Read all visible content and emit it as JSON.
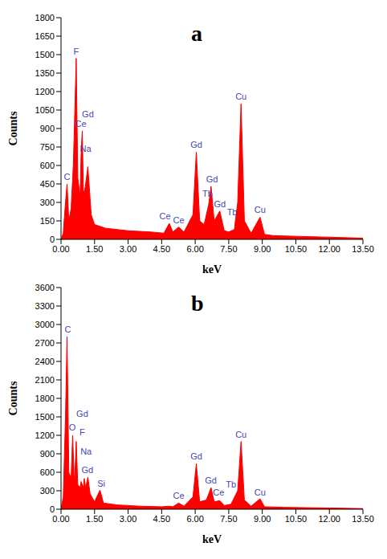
{
  "chart_data": [
    {
      "type": "area",
      "title": "a",
      "x_label": "keV",
      "y_label": "Counts",
      "color": "#ff0000",
      "x": [
        0.0,
        0.1,
        0.2,
        0.27,
        0.35,
        0.45,
        0.55,
        0.68,
        0.75,
        0.85,
        0.9,
        0.95,
        1.0,
        1.04,
        1.1,
        1.2,
        1.35,
        1.5,
        2.0,
        3.0,
        4.0,
        4.6,
        4.84,
        5.0,
        5.26,
        5.5,
        5.9,
        6.05,
        6.2,
        6.4,
        6.6,
        6.71,
        6.85,
        7.1,
        7.3,
        7.5,
        7.75,
        7.9,
        8.05,
        8.2,
        8.5,
        8.9,
        9.1,
        9.5,
        10.5,
        11.5,
        12.5,
        13.5
      ],
      "values": [
        0,
        50,
        300,
        450,
        150,
        250,
        600,
        1470,
        500,
        350,
        700,
        880,
        400,
        380,
        450,
        590,
        200,
        120,
        90,
        70,
        60,
        50,
        130,
        60,
        100,
        60,
        200,
        710,
        150,
        120,
        280,
        430,
        150,
        230,
        70,
        60,
        80,
        300,
        1100,
        150,
        50,
        180,
        40,
        30,
        25,
        20,
        15,
        10
      ],
      "xlim": [
        0,
        13.5
      ],
      "xticks": [
        {
          "value": 0,
          "label": "0.00"
        },
        {
          "value": 1.5,
          "label": "1.50"
        },
        {
          "value": 3,
          "label": "3.00"
        },
        {
          "value": 4.5,
          "label": "4.50"
        },
        {
          "value": 6,
          "label": "6.00"
        },
        {
          "value": 7.5,
          "label": "7.50"
        },
        {
          "value": 9,
          "label": "9.00"
        },
        {
          "value": 10.5,
          "label": "10.50"
        },
        {
          "value": 12,
          "label": "12.00"
        },
        {
          "value": 13.5,
          "label": "13.50"
        }
      ],
      "ylim": [
        0,
        1800
      ],
      "yticks": [
        0,
        150,
        300,
        450,
        600,
        750,
        900,
        1050,
        1200,
        1350,
        1500,
        1650,
        1800
      ],
      "annotations": [
        {
          "text": "C",
          "x": 0.27,
          "y": 470
        },
        {
          "text": "F",
          "x": 0.68,
          "y": 1490
        },
        {
          "text": "Ce",
          "x": 0.88,
          "y": 900
        },
        {
          "text": "Na",
          "x": 1.1,
          "y": 700
        },
        {
          "text": "Gd",
          "x": 1.2,
          "y": 980
        },
        {
          "text": "Ce",
          "x": 4.65,
          "y": 150
        },
        {
          "text": "Ce",
          "x": 5.26,
          "y": 120
        },
        {
          "text": "Gd",
          "x": 6.05,
          "y": 730
        },
        {
          "text": "Gd",
          "x": 6.75,
          "y": 450
        },
        {
          "text": "Tb",
          "x": 6.55,
          "y": 330
        },
        {
          "text": "Gd",
          "x": 7.1,
          "y": 250
        },
        {
          "text": "Tb",
          "x": 7.65,
          "y": 180
        },
        {
          "text": "Cu",
          "x": 8.05,
          "y": 1120
        },
        {
          "text": "Cu",
          "x": 8.9,
          "y": 200
        }
      ]
    },
    {
      "type": "area",
      "title": "b",
      "x_label": "keV",
      "y_label": "Counts",
      "color": "#ff0000",
      "x": [
        0.0,
        0.1,
        0.2,
        0.27,
        0.35,
        0.45,
        0.52,
        0.6,
        0.68,
        0.75,
        0.85,
        0.9,
        1.0,
        1.04,
        1.1,
        1.2,
        1.3,
        1.5,
        1.74,
        1.9,
        2.5,
        3.5,
        4.5,
        4.84,
        5.0,
        5.26,
        5.5,
        5.9,
        6.05,
        6.2,
        6.5,
        6.71,
        6.85,
        7.1,
        7.3,
        7.6,
        7.9,
        8.05,
        8.2,
        8.5,
        8.9,
        9.1,
        10.0,
        11.0,
        12.0,
        13.5
      ],
      "values": [
        0,
        200,
        1500,
        2800,
        600,
        500,
        1200,
        400,
        1100,
        400,
        350,
        450,
        350,
        500,
        350,
        520,
        250,
        120,
        310,
        100,
        70,
        50,
        40,
        50,
        40,
        100,
        50,
        200,
        740,
        120,
        150,
        350,
        120,
        140,
        60,
        80,
        300,
        1100,
        150,
        50,
        170,
        40,
        30,
        25,
        20,
        10
      ],
      "xlim": [
        0,
        13.5
      ],
      "xticks": [
        {
          "value": 0,
          "label": "0.00"
        },
        {
          "value": 1.5,
          "label": "1.50"
        },
        {
          "value": 3,
          "label": "3.00"
        },
        {
          "value": 4.5,
          "label": "4.50"
        },
        {
          "value": 6,
          "label": "6.00"
        },
        {
          "value": 7.5,
          "label": "7.50"
        },
        {
          "value": 9,
          "label": "9.00"
        },
        {
          "value": 10.5,
          "label": "10.50"
        },
        {
          "value": 12,
          "label": "12.00"
        },
        {
          "value": 13.5,
          "label": "13.50"
        }
      ],
      "ylim": [
        0,
        3600
      ],
      "yticks": [
        0,
        300,
        600,
        900,
        1200,
        1500,
        1800,
        2100,
        2400,
        2700,
        3000,
        3300,
        3600
      ],
      "annotations": [
        {
          "text": "C",
          "x": 0.3,
          "y": 2850
        },
        {
          "text": "O",
          "x": 0.5,
          "y": 1250
        },
        {
          "text": "Gd",
          "x": 0.95,
          "y": 1480
        },
        {
          "text": "F",
          "x": 0.95,
          "y": 1180
        },
        {
          "text": "Na",
          "x": 1.12,
          "y": 860
        },
        {
          "text": "Gd",
          "x": 1.18,
          "y": 560
        },
        {
          "text": "Si",
          "x": 1.8,
          "y": 340
        },
        {
          "text": "Ce",
          "x": 5.26,
          "y": 150
        },
        {
          "text": "Gd",
          "x": 6.05,
          "y": 780
        },
        {
          "text": "Gd",
          "x": 6.7,
          "y": 390
        },
        {
          "text": "Ce",
          "x": 7.05,
          "y": 190
        },
        {
          "text": "Tb",
          "x": 7.6,
          "y": 330
        },
        {
          "text": "Cu",
          "x": 8.05,
          "y": 1140
        },
        {
          "text": "Cu",
          "x": 8.9,
          "y": 200
        }
      ]
    }
  ]
}
